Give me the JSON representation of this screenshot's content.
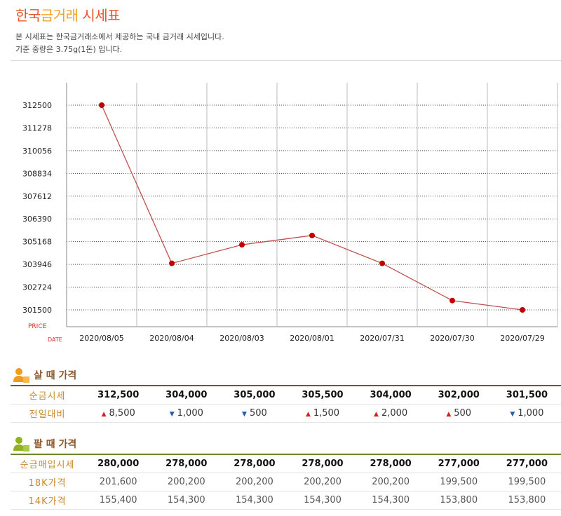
{
  "header": {
    "title_main": "한국",
    "title_accent": "금거래",
    "title_rest": " 시세표",
    "desc1": "본 시세표는 한국금거래소에서 제공하는 국내 금거래 시세입니다.",
    "desc2": "기준 중량은 3.75g(1돈) 입니다."
  },
  "colors": {
    "line": "#c0504d",
    "point": "#c00000",
    "title": "#e8562a",
    "buy_label": "#c98a2a"
  },
  "chart_data": {
    "type": "line",
    "x": [
      "2020/08/05",
      "2020/08/04",
      "2020/08/03",
      "2020/08/01",
      "2020/07/31",
      "2020/07/30",
      "2020/07/29"
    ],
    "series": [
      {
        "values": [
          312500,
          304000,
          305000,
          305500,
          304000,
          302000,
          301500
        ]
      }
    ],
    "yticks": [
      312500,
      311278,
      310056,
      308834,
      307612,
      306390,
      305168,
      303946,
      302724,
      301500
    ],
    "ylim": [
      301500,
      312500
    ],
    "ylabel": "PRICE",
    "xlabel": "DATE",
    "grid": true
  },
  "buy": {
    "section_title": "살 때 가격",
    "rows": [
      {
        "label": "순금시세",
        "values": [
          "312,500",
          "304,000",
          "305,000",
          "305,500",
          "304,000",
          "302,000",
          "301,500"
        ]
      }
    ],
    "change": {
      "label": "전일대비",
      "items": [
        {
          "dir": "up",
          "arrow": "▲",
          "value": "8,500"
        },
        {
          "dir": "down",
          "arrow": "▼",
          "value": "1,000"
        },
        {
          "dir": "down",
          "arrow": "▼",
          "value": "500"
        },
        {
          "dir": "up",
          "arrow": "▲",
          "value": "1,500"
        },
        {
          "dir": "up",
          "arrow": "▲",
          "value": "2,000"
        },
        {
          "dir": "up",
          "arrow": "▲",
          "value": "500"
        },
        {
          "dir": "down",
          "arrow": "▼",
          "value": "1,000"
        }
      ]
    }
  },
  "sell": {
    "section_title": "팔 때 가격",
    "rows": [
      {
        "label": "순금매입시세",
        "style": "bold",
        "values": [
          "280,000",
          "278,000",
          "278,000",
          "278,000",
          "278,000",
          "277,000",
          "277,000"
        ]
      },
      {
        "label": "18K가격",
        "style": "reg",
        "values": [
          "201,600",
          "200,200",
          "200,200",
          "200,200",
          "200,200",
          "199,500",
          "199,500"
        ]
      },
      {
        "label": "14K가격",
        "style": "reg",
        "values": [
          "155,400",
          "154,300",
          "154,300",
          "154,300",
          "154,300",
          "153,800",
          "153,800"
        ]
      }
    ]
  }
}
